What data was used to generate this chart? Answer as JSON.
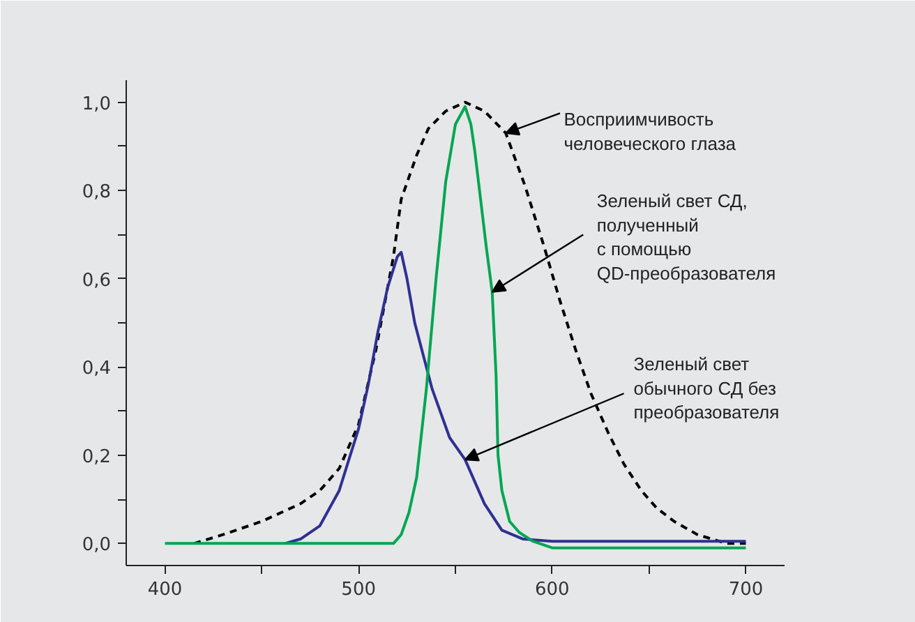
{
  "chart_data": {
    "type": "line",
    "xlim": [
      380,
      720
    ],
    "ylim": [
      -0.05,
      1.05
    ],
    "xticks": [
      400,
      {
        "value": 450,
        "label": null
      },
      500,
      {
        "value": 550,
        "label": null
      },
      600,
      {
        "value": 650,
        "label": null
      },
      700
    ],
    "yticks": [
      {
        "value": 0,
        "label": "0,0"
      },
      {
        "value": 0.1,
        "label": null
      },
      {
        "value": 0.2,
        "label": "0,2"
      },
      {
        "value": 0.3,
        "label": null
      },
      {
        "value": 0.4,
        "label": "0,4"
      },
      {
        "value": 0.5,
        "label": null
      },
      {
        "value": 0.6,
        "label": "0,6"
      },
      {
        "value": 0.7,
        "label": null
      },
      {
        "value": 0.8,
        "label": "0,8"
      },
      {
        "value": 0.9,
        "label": null
      },
      {
        "value": 1.0,
        "label": "1,0"
      }
    ],
    "series": [
      {
        "color": "#000000",
        "line_style": "dashed",
        "x": [
          415,
          430,
          450,
          470,
          480,
          490,
          500,
          509,
          518,
          522,
          530,
          536,
          545,
          555,
          565,
          576,
          586,
          596,
          604,
          612,
          620,
          629,
          637,
          646,
          654,
          663,
          675,
          690,
          700
        ],
        "values": [
          0.0,
          0.02,
          0.05,
          0.09,
          0.12,
          0.17,
          0.27,
          0.44,
          0.65,
          0.78,
          0.88,
          0.94,
          0.98,
          1.0,
          0.98,
          0.93,
          0.81,
          0.67,
          0.55,
          0.44,
          0.34,
          0.25,
          0.18,
          0.12,
          0.08,
          0.05,
          0.02,
          0.0,
          0.0
        ]
      },
      {
        "color": "#2e3192",
        "line_style": "solid",
        "x": [
          462,
          470,
          480,
          490,
          500,
          505,
          510,
          515,
          520,
          522,
          525,
          529,
          538,
          547,
          555,
          565,
          574,
          585,
          600,
          650,
          700
        ],
        "values": [
          0.0,
          0.01,
          0.04,
          0.12,
          0.26,
          0.36,
          0.48,
          0.58,
          0.65,
          0.66,
          0.6,
          0.5,
          0.35,
          0.24,
          0.19,
          0.09,
          0.03,
          0.01,
          0.005,
          0.005,
          0.005
        ]
      },
      {
        "color": "#00a651",
        "line_style": "solid",
        "x": [
          400,
          450,
          500,
          518,
          522,
          526,
          530,
          535,
          540,
          545,
          550,
          555,
          558,
          560,
          563,
          566,
          569,
          571,
          572,
          574,
          578,
          583,
          590,
          600,
          650,
          700
        ],
        "values": [
          0.0,
          0.0,
          0.0,
          0.0,
          0.02,
          0.07,
          0.15,
          0.35,
          0.6,
          0.82,
          0.95,
          0.99,
          0.95,
          0.89,
          0.78,
          0.67,
          0.57,
          0.38,
          0.2,
          0.12,
          0.05,
          0.025,
          0.005,
          -0.01,
          -0.01,
          -0.01
        ]
      }
    ],
    "annotations": [
      {
        "text": "Восприимчивость\nчеловеческого глаза",
        "x": 576,
        "y": 0.93
      },
      {
        "text": "Зеленый свет СД,\nполученный\nс помощью\nQD-преобразователя",
        "x": 569,
        "y": 0.57
      },
      {
        "text": "Зеленый свет\nобычного СД без\nпреобразователя",
        "x": 555,
        "y": 0.19
      }
    ]
  }
}
